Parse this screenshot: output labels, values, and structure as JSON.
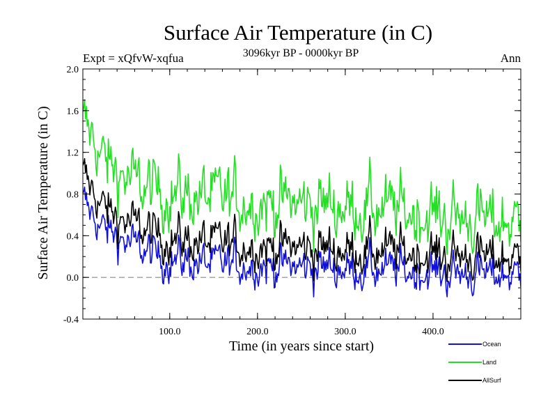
{
  "chart_data": {
    "type": "line",
    "title": "Surface Air Temperature (in C)",
    "subtitle": "3096kyr BP - 0000kyr BP",
    "top_left_label": "Expt = xQfvW-xqfua",
    "top_right_label": "Ann",
    "xlabel": "Time (in years since start)",
    "ylabel": "Surface Air Temperature (in C)",
    "xlim": [
      1,
      500
    ],
    "ylim": [
      -0.4,
      2.0
    ],
    "xticks": [
      100,
      200,
      300,
      400
    ],
    "xtick_labels": [
      "100.0",
      "200.0",
      "300.0",
      "400.0"
    ],
    "yticks": [
      -0.4,
      0.0,
      0.4,
      0.8,
      1.2,
      1.6,
      2.0
    ],
    "ytick_labels": [
      "-0.4",
      "0.0",
      "0.4",
      "0.8",
      "1.2",
      "1.6",
      "2.0"
    ],
    "reference_line": {
      "y": 0.0,
      "style": "dashed",
      "color": "#888888"
    },
    "grid": false,
    "legend_position": "bottom-right",
    "series": [
      {
        "name": "Ocean",
        "color": "#1010dd",
        "x": [
          1,
          10,
          20,
          30,
          40,
          50,
          60,
          70,
          80,
          90,
          100,
          120,
          140,
          160,
          180,
          200,
          225,
          250,
          275,
          300,
          325,
          350,
          375,
          400,
          425,
          450,
          475,
          500
        ],
        "values": [
          0.72,
          0.62,
          0.5,
          0.44,
          0.4,
          0.34,
          0.3,
          0.26,
          0.22,
          0.19,
          0.17,
          0.15,
          0.13,
          0.12,
          0.12,
          0.12,
          0.11,
          0.1,
          0.1,
          0.09,
          0.08,
          0.07,
          0.06,
          0.05,
          0.04,
          0.03,
          0.03,
          0.02
        ],
        "variability": 0.1
      },
      {
        "name": "Land",
        "color": "#22e022",
        "x": [
          1,
          10,
          20,
          30,
          40,
          50,
          60,
          70,
          80,
          90,
          100,
          120,
          140,
          160,
          180,
          200,
          225,
          250,
          275,
          300,
          325,
          350,
          375,
          400,
          425,
          450,
          475,
          500
        ],
        "values": [
          1.45,
          1.38,
          1.2,
          1.08,
          1.02,
          0.96,
          0.9,
          0.86,
          0.84,
          0.82,
          0.8,
          0.78,
          0.76,
          0.75,
          0.74,
          0.73,
          0.72,
          0.71,
          0.7,
          0.69,
          0.67,
          0.65,
          0.63,
          0.6,
          0.58,
          0.56,
          0.54,
          0.52
        ],
        "variability": 0.16
      },
      {
        "name": "AllSurf",
        "color": "#000000",
        "x": [
          1,
          10,
          20,
          30,
          40,
          50,
          60,
          70,
          80,
          90,
          100,
          120,
          140,
          160,
          180,
          200,
          225,
          250,
          275,
          300,
          325,
          350,
          375,
          400,
          425,
          450,
          475,
          500
        ],
        "values": [
          0.98,
          0.86,
          0.72,
          0.64,
          0.58,
          0.54,
          0.5,
          0.46,
          0.42,
          0.4,
          0.37,
          0.35,
          0.33,
          0.32,
          0.31,
          0.31,
          0.3,
          0.29,
          0.28,
          0.27,
          0.26,
          0.25,
          0.24,
          0.22,
          0.21,
          0.2,
          0.19,
          0.18
        ],
        "variability": 0.11
      }
    ]
  }
}
